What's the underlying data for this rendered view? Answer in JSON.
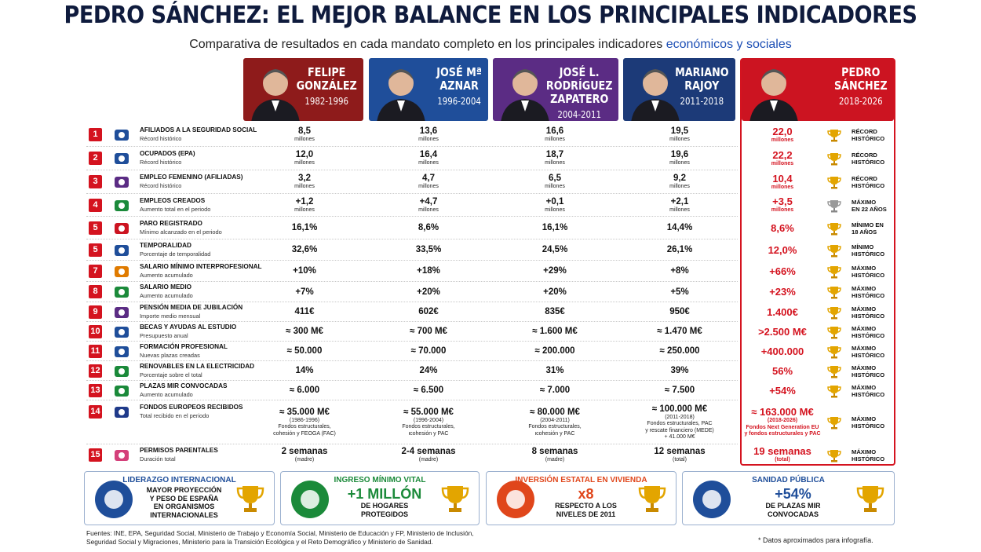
{
  "header": {
    "title": "PEDRO SÁNCHEZ: EL MEJOR BALANCE EN LOS PRINCIPALES INDICADORES",
    "subtitle": "Comparativa de resultados en cada mandato completo en los principales indicadores",
    "subtitle_highlight": "económicos y sociales"
  },
  "columns": [
    {
      "name": [
        "FELIPE",
        "GONZÁLEZ"
      ],
      "years": "1982-1996"
    },
    {
      "name": [
        "JOSÉ Mª",
        "AZNAR"
      ],
      "years": "1996-2004"
    },
    {
      "name": [
        "JOSÉ L.",
        "RODRÍGUEZ",
        "ZAPATERO"
      ],
      "years": "2004-2011"
    },
    {
      "name": [
        "MARIANO",
        "RAJOY"
      ],
      "years": "2011-2018"
    },
    {
      "name": [
        "PEDRO",
        "SÁNCHEZ"
      ],
      "years": "2018-2026"
    }
  ],
  "rows": [
    {
      "number": "1",
      "title": "AFILIADOS A LA SEGURIDAD SOCIAL",
      "subtitle": "Récord histórico",
      "cells": [
        [
          "8,5",
          "millones"
        ],
        [
          "13,6",
          "millones"
        ],
        [
          "16,6",
          "millones"
        ],
        [
          "19,5",
          "millones"
        ],
        [
          "22,0",
          "millones"
        ]
      ],
      "badge": [
        "RÉCORD",
        "HISTÓRICO"
      ]
    },
    {
      "number": "2",
      "title": "OCUPADOS (EPA)",
      "subtitle": "Récord histórico",
      "cells": [
        [
          "12,0",
          "millones"
        ],
        [
          "16,4",
          "millones"
        ],
        [
          "18,7",
          "millones"
        ],
        [
          "19,6",
          "millones"
        ],
        [
          "22,2",
          "millones"
        ]
      ],
      "badge": [
        "RÉCORD",
        "HISTÓRICO"
      ]
    },
    {
      "number": "3",
      "title": "EMPLEO FEMENINO (AFILIADAS)",
      "subtitle": "Récord histórico",
      "cells": [
        [
          "3,2",
          "millones"
        ],
        [
          "4,7",
          "millones"
        ],
        [
          "6,5",
          "millones"
        ],
        [
          "9,2",
          "millones"
        ],
        [
          "10,4",
          "millones"
        ]
      ],
      "badge": [
        "RÉCORD",
        "HISTÓRICO"
      ]
    },
    {
      "number": "4",
      "title": "EMPLEOS CREADOS",
      "subtitle": "Aumento total en el periodo",
      "cells": [
        [
          "+1,2",
          "millones"
        ],
        [
          "+4,7",
          "millones"
        ],
        [
          "+0,1",
          "millones"
        ],
        [
          "+2,1",
          "millones"
        ],
        [
          "+3,5",
          "millones"
        ]
      ],
      "badge": [
        "MÁXIMO",
        "EN 22 AÑOS"
      ]
    },
    {
      "number": "5",
      "title": "PARO REGISTRADO",
      "subtitle": "Mínimo alcanzado en el periodo",
      "cells": [
        [
          "16,1%"
        ],
        [
          "8,6%"
        ],
        [
          "16,1%"
        ],
        [
          "14,4%"
        ],
        [
          "8,6%"
        ]
      ],
      "badge": [
        "MÍNIMO EN",
        "18 AÑOS"
      ]
    },
    {
      "number": "5",
      "title": "TEMPORALIDAD",
      "subtitle": "Porcentaje de temporalidad",
      "cells": [
        [
          "32,6%"
        ],
        [
          "33,5%"
        ],
        [
          "24,5%"
        ],
        [
          "26,1%"
        ],
        [
          "12,0%"
        ]
      ],
      "badge": [
        "MÍNIMO",
        "HISTÓRICO"
      ]
    },
    {
      "number": "7",
      "title": "SALARIO MÍNIMO INTERPROFESIONAL",
      "subtitle": "Aumento acumulado",
      "cells": [
        [
          "+10%"
        ],
        [
          "+18%"
        ],
        [
          "+29%"
        ],
        [
          "+8%"
        ],
        [
          "+66%"
        ]
      ],
      "badge": [
        "MÁXIMO",
        "HISTÓRICO"
      ]
    },
    {
      "number": "8",
      "title": "SALARIO MEDIO",
      "subtitle": "Aumento acumulado",
      "cells": [
        [
          "+7%"
        ],
        [
          "+20%"
        ],
        [
          "+20%"
        ],
        [
          "+5%"
        ],
        [
          "+23%"
        ]
      ],
      "badge": [
        "MÁXIMO",
        "HISTÓRICO"
      ]
    },
    {
      "number": "9",
      "title": "PENSIÓN MEDIA DE JUBILACIÓN",
      "subtitle": "Importe medio mensual",
      "cells": [
        [
          "411€"
        ],
        [
          "602€"
        ],
        [
          "835€"
        ],
        [
          "950€"
        ],
        [
          "1.400€"
        ]
      ],
      "badge": [
        "MÁXIMO",
        "HISTÓRICO"
      ]
    },
    {
      "number": "10",
      "title": "BECAS Y AYUDAS AL ESTUDIO",
      "subtitle": "Presupuesto anual",
      "cells": [
        [
          "≈ 300 M€"
        ],
        [
          "≈ 700 M€"
        ],
        [
          "≈ 1.600 M€"
        ],
        [
          "≈ 1.470 M€"
        ],
        [
          ">2.500 M€"
        ]
      ],
      "badge": [
        "MÁXIMO",
        "HISTÓRICO"
      ]
    },
    {
      "number": "11",
      "title": "FORMACIÓN PROFESIONAL",
      "subtitle": "Nuevas plazas creadas",
      "cells": [
        [
          "≈ 50.000"
        ],
        [
          "≈ 70.000"
        ],
        [
          "≈ 200.000"
        ],
        [
          "≈ 250.000"
        ],
        [
          "+400.000"
        ]
      ],
      "badge": [
        "MÁXIMO",
        "HISTÓRICO"
      ]
    },
    {
      "number": "12",
      "title": "RENOVABLES EN LA ELECTRICIDAD",
      "subtitle": "Porcentaje sobre el total",
      "cells": [
        [
          "14%"
        ],
        [
          "24%"
        ],
        [
          "31%"
        ],
        [
          "39%"
        ],
        [
          "56%"
        ]
      ],
      "badge": [
        "MÁXIMO",
        "HISTÓRICO"
      ]
    },
    {
      "number": "13",
      "title": "PLAZAS MIR CONVOCADAS",
      "subtitle": "Aumento acumulado",
      "cells": [
        [
          "≈ 6.000"
        ],
        [
          "≈ 6.500"
        ],
        [
          "≈ 7.000"
        ],
        [
          "≈ 7.500"
        ],
        [
          "+54%"
        ]
      ],
      "badge": [
        "MÁXIMO",
        "HISTÓRICO"
      ]
    },
    {
      "number": "14",
      "title": "FONDOS EUROPEOS RECIBIDOS",
      "subtitle": "Total recibido en el periodo",
      "cells": [
        [
          "≈ 35.000 M€",
          "(1986-1996)",
          "Fondos estructurales,",
          "cohesión y FEOGA (FAC)"
        ],
        [
          "≈ 55.000 M€",
          "(1996-2004)",
          "Fondos estructurales,",
          "ιcohesión y PAC"
        ],
        [
          "≈ 80.000 M€",
          "(2004-2011)",
          "Fondos estructurales,",
          "ιcohesión y PAC"
        ],
        [
          "≈ 100.000 M€",
          "(2011-2018)",
          "Fondos estructurales, PAC",
          "y rescate financiero (MEDE)",
          "+ 41.000 M€"
        ],
        [
          "≈ 163.000 M€",
          "(2018-2026)",
          "Fondos Next Generation EU",
          "y fondos estructurales y PAC"
        ]
      ],
      "badge": [
        "MÁXIMO",
        "HISTÓRICO"
      ]
    },
    {
      "number": "15",
      "title": "PERMISOS PARENTALES",
      "subtitle": "Duración total",
      "cells": [
        [
          "2 semanas",
          "(madre)"
        ],
        [
          "2-4 semanas",
          "(madre)"
        ],
        [
          "8 semanas",
          "(madre)"
        ],
        [
          "12 semanas",
          "(total)"
        ],
        [
          "19 semanas",
          "(total)"
        ]
      ],
      "badge": [
        "MÁXIMO",
        "HISTÓRICO"
      ]
    }
  ],
  "highlights": [
    {
      "title": "LIDERAZGO INTERNACIONAL",
      "lines": [
        "MAYOR PROYECCIÓN",
        "Y PESO DE ESPAÑA",
        "EN ORGANISMOS",
        "INTERNACIONALES"
      ]
    },
    {
      "title": "INGRESO MÍNIMO VITAL",
      "big": "+1 MILLÓN",
      "lines": [
        "DE HOGARES",
        "PROTEGIDOS"
      ]
    },
    {
      "title": "INVERSIÓN ESTATAL EN VIVIENDA",
      "big": "x8",
      "lines": [
        "RESPECTO A LOS",
        "NIVELES DE 2011"
      ]
    },
    {
      "title": "SANIDAD PÚBLICA",
      "big": "+54%",
      "lines": [
        "DE PLAZAS MIR",
        "CONVOCADAS"
      ]
    }
  ],
  "footer": {
    "sources": [
      "Fuentes: INE, EPA, Seguridad Social, Ministerio de Trabajo y Economía Social, Ministerio de Educación y FP, Ministerio de Inclusión,",
      "Seguridad Social y Migraciones, Ministerio para la Transición Ecológica y el Reto Demográfico y Ministerio de Sanidad."
    ],
    "note": "* Datos aproximados para infografía."
  }
}
